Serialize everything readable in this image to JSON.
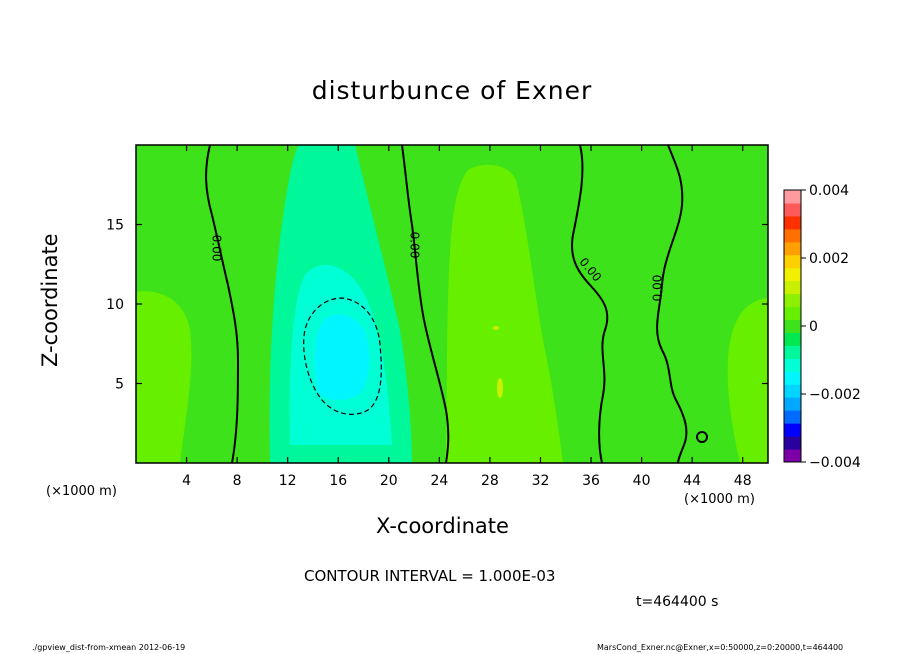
{
  "figure": {
    "title": "disturbunce of Exner",
    "interval_label": "CONTOUR INTERVAL = 1.000E-03",
    "time_label": "t=464400 s",
    "footer_left": "./gpview_dist-from-xmean  2012-06-19",
    "footer_right": "MarsCond_Exner.nc@Exner,x=0:50000,z=0:20000,t=464400"
  },
  "chart_data": {
    "type": "heatmap",
    "title": "disturbunce of Exner",
    "xlabel": "X-coordinate",
    "ylabel": "Z-coordinate",
    "x_unit_label": "(×1000 m)",
    "xlim": [
      0,
      50
    ],
    "ylim": [
      0,
      20
    ],
    "x_ticks": [
      4,
      8,
      12,
      16,
      20,
      24,
      28,
      32,
      36,
      40,
      44,
      48
    ],
    "y_ticks": [
      5,
      10,
      15
    ],
    "colorbar": {
      "range": [
        -0.004,
        0.004
      ],
      "tick_values": [
        0.004,
        0.002,
        0,
        -0.002,
        -0.004
      ],
      "tick_labels": [
        "0.004",
        "0.002",
        "0",
        "−0.002",
        "−0.004"
      ],
      "colors": [
        "#7b00a8",
        "#2a009e",
        "#0000ff",
        "#006bff",
        "#00a8ff",
        "#00d5ff",
        "#00f5ff",
        "#00ffd4",
        "#00f79a",
        "#00e84f",
        "#3ee21a",
        "#66f000",
        "#8cf000",
        "#c8f000",
        "#f0f000",
        "#ffd000",
        "#ffa000",
        "#ff7000",
        "#ff3000",
        "#ff5a5a",
        "#ff9aa0"
      ]
    },
    "contour_interval": 0.001,
    "contour_labels": [
      "0.00",
      "0.00",
      "0.00",
      "0.00"
    ],
    "regions": [
      {
        "name": "negative-core",
        "x_range": [
          13,
          19
        ],
        "z_range": [
          3,
          10.5
        ],
        "approx_value": -0.0015
      },
      {
        "name": "negative-column",
        "x_range": [
          10,
          24
        ],
        "z_range": [
          0,
          20
        ],
        "approx_value": -0.0005
      },
      {
        "name": "positive-column",
        "x_range": [
          25,
          34
        ],
        "z_range": [
          0,
          18
        ],
        "approx_value": 0.0005
      },
      {
        "name": "positive-left",
        "x_range": [
          0,
          4
        ],
        "z_range": [
          0,
          10.5
        ],
        "approx_value": 0.0004
      },
      {
        "name": "positive-right",
        "x_range": [
          46,
          50
        ],
        "z_range": [
          0,
          10
        ],
        "approx_value": 0.0004
      }
    ]
  }
}
